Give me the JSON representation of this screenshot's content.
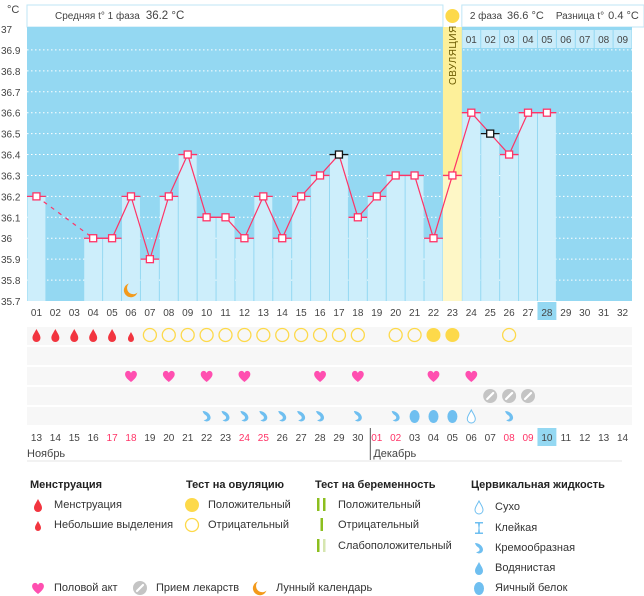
{
  "header": {
    "unit": "°C",
    "phase1_label": "Средняя t° 1 фаза",
    "phase1_value": "36.2 °C",
    "phase2_label": "2 фаза",
    "phase2_value": "36.6 °C",
    "diff_label": "Разница t°",
    "diff_value": "0.4 °C",
    "ovulation_label": "ОВУЛЯЦИЯ"
  },
  "colors": {
    "plot_bg": "#94d8f2",
    "bar": "#cdeefb",
    "line": "#ff3366",
    "ovulation": "#fdf09a",
    "weekend": "#ff3366",
    "today": "#94d8f2"
  },
  "chart_data": {
    "type": "line",
    "ylim": [
      35.7,
      37
    ],
    "yticks": [
      "37",
      "36.9",
      "36.8",
      "36.7",
      "36.6",
      "36.5",
      "36.4",
      "36.3",
      "36.2",
      "36.1",
      "36",
      "35.9",
      "35.8",
      "35.7"
    ],
    "cycle_days": [
      "01",
      "02",
      "03",
      "04",
      "05",
      "06",
      "07",
      "08",
      "09",
      "10",
      "11",
      "12",
      "13",
      "14",
      "15",
      "16",
      "17",
      "18",
      "19",
      "20",
      "21",
      "22",
      "23",
      "24",
      "25",
      "26",
      "27",
      "28",
      "29",
      "30",
      "31",
      "32"
    ],
    "temperatures": [
      36.2,
      null,
      null,
      36.0,
      36.0,
      36.2,
      35.9,
      36.2,
      36.4,
      36.1,
      36.1,
      36.0,
      36.2,
      36.0,
      36.2,
      36.3,
      36.4,
      36.1,
      36.2,
      36.3,
      36.3,
      36.0,
      36.3,
      36.6,
      36.5,
      36.4,
      36.6,
      36.6
    ],
    "black_marker_days": [
      17,
      25
    ],
    "ovulation_day": 23,
    "current_day": 28,
    "moon_day": 6,
    "phase2_days": [
      "01",
      "02",
      "03",
      "04",
      "05",
      "06",
      "07",
      "08",
      "09"
    ],
    "dates": [
      "13",
      "14",
      "15",
      "16",
      "17",
      "18",
      "19",
      "20",
      "21",
      "22",
      "23",
      "24",
      "25",
      "26",
      "27",
      "28",
      "29",
      "30",
      "01",
      "02",
      "03",
      "04",
      "05",
      "06",
      "07",
      "08",
      "09",
      "10",
      "11",
      "12",
      "13",
      "14"
    ],
    "weekend_date_indices": [
      5,
      6,
      12,
      13,
      19,
      20,
      26,
      27
    ],
    "months": [
      {
        "label": "Ноябрь",
        "start_index": 1
      },
      {
        "label": "Декабрь",
        "start_index": 19
      }
    ],
    "rows": {
      "menstruation": {
        "heavy": [
          1,
          2,
          3,
          4,
          5
        ],
        "light": [
          6
        ]
      },
      "ovulation_test": {
        "positive": [
          22,
          23
        ],
        "negative": [
          7,
          8,
          9,
          10,
          11,
          12,
          13,
          14,
          15,
          16,
          17,
          18,
          20,
          21,
          26
        ]
      },
      "pregnancy_test": {},
      "intercourse": [
        6,
        8,
        10,
        12,
        16,
        18,
        22,
        24
      ],
      "medication": [
        25,
        26,
        27
      ],
      "cervical": {
        "dry": [
          24
        ],
        "creamy": [
          10,
          11,
          12,
          13,
          14,
          15,
          16,
          18,
          20,
          26
        ],
        "eggwhite": [
          21,
          22,
          23
        ]
      }
    }
  },
  "legend": {
    "menstruation": {
      "title": "Менструация",
      "items": [
        "Менструация",
        "Небольшие выделения"
      ]
    },
    "ovulation_test": {
      "title": "Тест на овуляцию",
      "items": [
        "Положительный",
        "Отрицательный"
      ]
    },
    "pregnancy_test": {
      "title": "Тест на беременность",
      "items": [
        "Положительный",
        "Отрицательный",
        "Слабоположительный"
      ]
    },
    "cervical": {
      "title": "Цервикальная жидкость",
      "items": [
        "Сухо",
        "Клейкая",
        "Кремообразная",
        "Водянистая",
        "Яичный белок"
      ]
    },
    "other": [
      "Половой акт",
      "Прием лекарств",
      "Лунный календарь"
    ]
  }
}
